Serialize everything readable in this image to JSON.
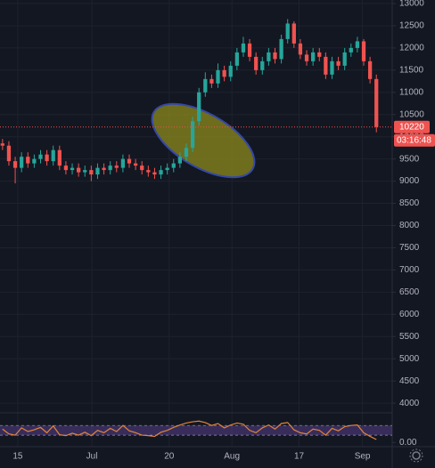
{
  "chart_data": {
    "type": "candlestick",
    "up_color": "#26a69a",
    "down_color": "#ef5350",
    "grid": true,
    "open": [
      9850,
      9800,
      9450,
      9300,
      9550,
      9400,
      9500,
      9600,
      9450,
      9700,
      9350,
      9250,
      9300,
      9200,
      9250,
      9150,
      9300,
      9250,
      9350,
      9300,
      9500,
      9400,
      9350,
      9250,
      9200,
      9150,
      9250,
      9300,
      9400,
      9550,
      9750,
      10350,
      11000,
      11300,
      11200,
      11500,
      11350,
      11600,
      11900,
      12100,
      11800,
      11500,
      11700,
      11900,
      11750,
      12200,
      12550,
      12100,
      11850,
      11700,
      11900,
      11800,
      11400,
      11700,
      11600,
      11900,
      12000,
      12150,
      11700,
      11300
    ],
    "high": [
      9950,
      9900,
      9550,
      9650,
      9650,
      9600,
      9700,
      9700,
      9800,
      9800,
      9450,
      9400,
      9400,
      9350,
      9350,
      9400,
      9400,
      9450,
      9450,
      9600,
      9600,
      9500,
      9450,
      9350,
      9300,
      9350,
      9400,
      9500,
      9650,
      9850,
      10450,
      11100,
      11450,
      11400,
      11650,
      11600,
      11700,
      12000,
      12250,
      12200,
      11900,
      11800,
      12000,
      12000,
      12300,
      12650,
      12600,
      12200,
      11950,
      12000,
      12000,
      11900,
      11800,
      11800,
      12000,
      12100,
      12250,
      12200,
      11800,
      11400
    ],
    "low": [
      9700,
      9350,
      8950,
      9200,
      9300,
      9300,
      9400,
      9350,
      9350,
      9250,
      9150,
      9150,
      9100,
      9100,
      9000,
      9050,
      9150,
      9150,
      9200,
      9200,
      9300,
      9250,
      9150,
      9100,
      9050,
      9050,
      9150,
      9200,
      9300,
      9450,
      9650,
      10250,
      10900,
      11100,
      11100,
      11250,
      11250,
      11500,
      11800,
      11700,
      11400,
      11400,
      11600,
      11650,
      11650,
      12100,
      12000,
      11750,
      11600,
      11600,
      11700,
      11300,
      11300,
      11500,
      11500,
      11800,
      11900,
      11600,
      11200,
      10100
    ],
    "close": [
      9800,
      9450,
      9300,
      9550,
      9400,
      9500,
      9600,
      9450,
      9700,
      9350,
      9250,
      9300,
      9200,
      9250,
      9150,
      9300,
      9250,
      9350,
      9300,
      9500,
      9400,
      9350,
      9250,
      9200,
      9150,
      9250,
      9300,
      9400,
      9550,
      9750,
      10350,
      11000,
      11300,
      11200,
      11500,
      11350,
      11600,
      11900,
      12100,
      11800,
      11500,
      11700,
      11900,
      11750,
      12200,
      12550,
      12100,
      11850,
      11700,
      11900,
      11800,
      11400,
      11700,
      11600,
      11900,
      12000,
      12150,
      11700,
      11300,
      10220
    ],
    "ylim": [
      3822,
      13080
    ],
    "yticks": [
      4000,
      4500,
      5000,
      5500,
      6000,
      6500,
      7000,
      7500,
      8000,
      8500,
      9000,
      9500,
      10000,
      10500,
      11000,
      11500,
      12000,
      12500,
      13000
    ],
    "xlim": [
      -0.4,
      61.5
    ],
    "xticks": [
      {
        "value": 2.4,
        "label": "15"
      },
      {
        "value": 14.1,
        "label": "Jul"
      },
      {
        "value": 26.3,
        "label": "20"
      },
      {
        "value": 36.2,
        "label": "Aug"
      },
      {
        "value": 46.8,
        "label": "17"
      },
      {
        "value": 56.8,
        "label": "Sep"
      }
    ],
    "last_price": 10220,
    "countdown": "03:16:48",
    "rsi": {
      "color": "#e0843c",
      "band": [
        30,
        70
      ],
      "ylim": [
        -10,
        100
      ],
      "yticks": [
        {
          "value": 0,
          "label": "0.00"
        }
      ],
      "values": [
        55,
        35,
        30,
        60,
        45,
        52,
        62,
        40,
        68,
        32,
        28,
        38,
        30,
        42,
        28,
        50,
        40,
        58,
        45,
        70,
        48,
        40,
        30,
        28,
        25,
        42,
        50,
        62,
        72,
        80,
        85,
        88,
        82,
        70,
        78,
        60,
        72,
        80,
        75,
        50,
        40,
        60,
        72,
        55,
        78,
        82,
        52,
        40,
        35,
        55,
        50,
        30,
        58,
        48,
        65,
        70,
        72,
        40,
        25,
        12
      ]
    }
  }
}
